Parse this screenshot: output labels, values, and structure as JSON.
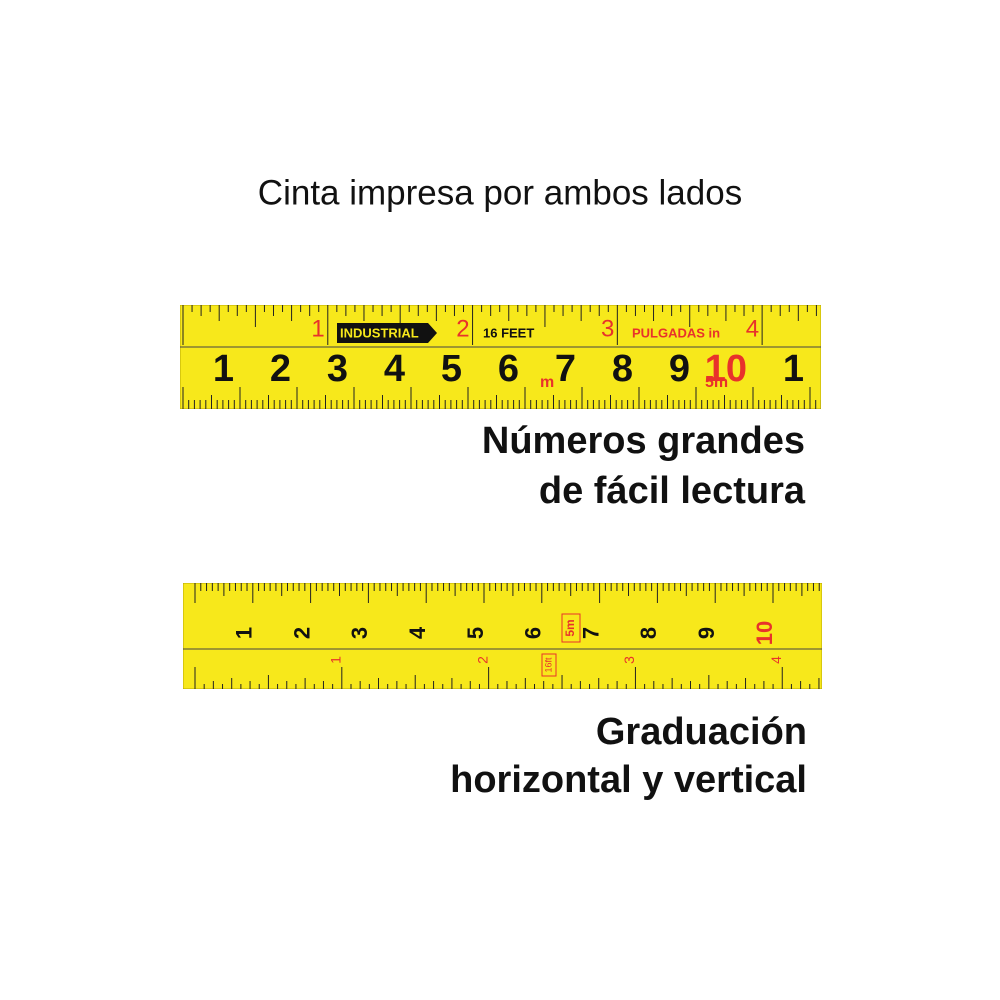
{
  "title": "Cinta impresa por ambos lados",
  "tape1": {
    "cm_labels": [
      "1",
      "2",
      "3",
      "4",
      "5",
      "6",
      "7",
      "8",
      "9",
      "10",
      "1"
    ],
    "inch_labels": [
      "1",
      "2",
      "3",
      "4"
    ],
    "brand_texts": [
      "INDUSTRIAL",
      "16 FEET",
      "PULGADAS in"
    ],
    "unit_marks": [
      "m",
      "5m"
    ]
  },
  "caption1": [
    "Números grandes",
    "de fácil lectura"
  ],
  "tape2": {
    "cm_labels": [
      "1",
      "2",
      "3",
      "4",
      "5",
      "6",
      "7",
      "8",
      "9",
      "10"
    ],
    "inch_labels": [
      "1",
      "2",
      "3",
      "4"
    ],
    "unit_marks": [
      "5m",
      "16ft"
    ]
  },
  "caption2": [
    "Graduación",
    "horizontal y vertical"
  ]
}
